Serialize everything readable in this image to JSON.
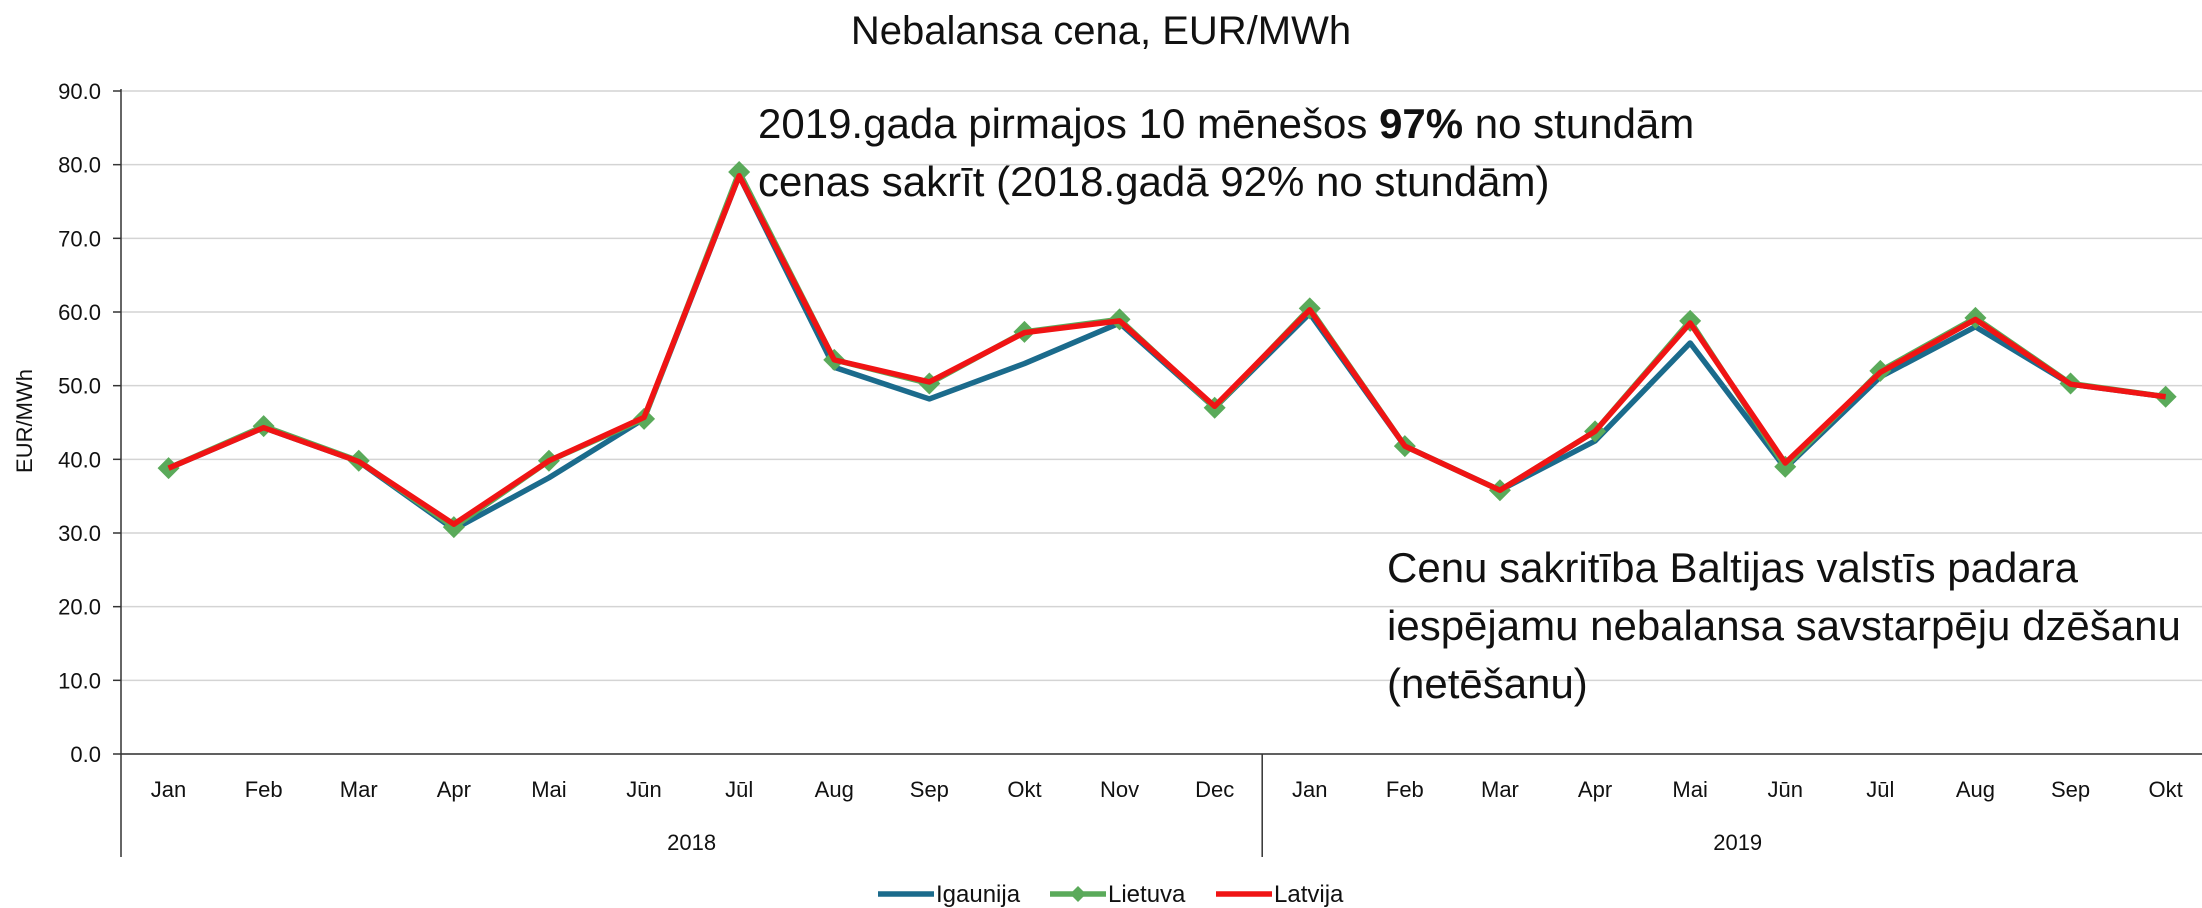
{
  "chart_data": {
    "type": "line",
    "title": "Nebalansa cena, EUR/MWh",
    "y_label": "EUR/MWh",
    "category_groups": [
      {
        "name": "2018",
        "categories": [
          "Jan",
          "Feb",
          "Mar",
          "Apr",
          "Mai",
          "Jūn",
          "Jūl",
          "Aug",
          "Sep",
          "Okt",
          "Nov",
          "Dec"
        ]
      },
      {
        "name": "2019",
        "categories": [
          "Jan",
          "Feb",
          "Mar",
          "Apr",
          "Mai",
          "Jūn",
          "Jūl",
          "Aug",
          "Sep",
          "Okt"
        ]
      }
    ],
    "series": [
      {
        "name": "Igaunija",
        "color": "#1b6b8c",
        "values": [
          38.8,
          44.3,
          39.7,
          30.5,
          37.5,
          45.5,
          78.5,
          52.5,
          48.2,
          53.0,
          58.5,
          47.0,
          59.8,
          41.8,
          35.8,
          42.5,
          55.8,
          38.8,
          51.2,
          58.0,
          50.2,
          48.5
        ]
      },
      {
        "name": "Lietuva",
        "color": "#5aaa5a",
        "marker": "diamond",
        "values": [
          38.8,
          44.5,
          39.8,
          30.8,
          39.8,
          45.5,
          79.0,
          53.5,
          50.3,
          57.3,
          59.0,
          47.0,
          60.5,
          41.8,
          35.8,
          43.8,
          58.8,
          39.0,
          52.0,
          59.2,
          50.3,
          48.5
        ]
      },
      {
        "name": "Latvija",
        "color": "#f01414",
        "values": [
          38.8,
          44.3,
          39.7,
          31.2,
          39.8,
          45.7,
          78.5,
          53.5,
          50.5,
          57.2,
          58.8,
          47.2,
          60.3,
          41.8,
          35.8,
          43.8,
          58.5,
          39.5,
          51.8,
          59.0,
          50.2,
          48.5
        ]
      }
    ],
    "ylim": [
      0,
      90
    ],
    "yticks": [
      {
        "value": 0,
        "label": "0.0"
      },
      {
        "value": 10,
        "label": "10.0"
      },
      {
        "value": 20,
        "label": "20.0"
      },
      {
        "value": 30,
        "label": "30.0"
      },
      {
        "value": 40,
        "label": "40.0"
      },
      {
        "value": 50,
        "label": "50.0"
      },
      {
        "value": 60,
        "label": "60.0"
      },
      {
        "value": 70,
        "label": "70.0"
      },
      {
        "value": 80,
        "label": "80.0"
      },
      {
        "value": 90,
        "label": "90.0"
      }
    ],
    "grid": true,
    "legend": "bottom",
    "annotations": [
      {
        "lines": [
          [
            {
              "text": "2019.gada pirmajos 10 mēnešos "
            },
            {
              "text": "97%",
              "bold": true
            },
            {
              "text": " no stundām"
            }
          ],
          [
            {
              "text": "cenas sakrīt (2018.gadā 92% no stundām)"
            }
          ]
        ]
      },
      {
        "lines": [
          [
            {
              "text": "Cenu sakritība Baltijas valstīs padara"
            }
          ],
          [
            {
              "text": "iespējamu nebalansa savstarpēju dzēšanu"
            }
          ],
          [
            {
              "text": "(netēšanu)"
            }
          ]
        ]
      }
    ]
  }
}
